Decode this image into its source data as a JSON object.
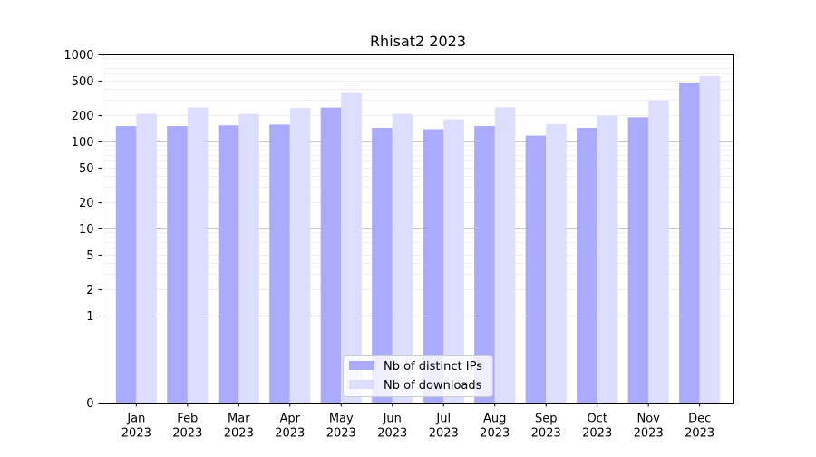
{
  "chart_data": {
    "type": "bar",
    "title": "Rhisat2 2023",
    "xlabel": "",
    "ylabel": "",
    "y_scale": "symlog",
    "ylim": [
      0,
      1000
    ],
    "y_ticks": [
      0,
      1,
      2,
      5,
      10,
      20,
      50,
      100,
      200,
      500,
      1000
    ],
    "categories": [
      [
        "Jan",
        "2023"
      ],
      [
        "Feb",
        "2023"
      ],
      [
        "Mar",
        "2023"
      ],
      [
        "Apr",
        "2023"
      ],
      [
        "May",
        "2023"
      ],
      [
        "Jun",
        "2023"
      ],
      [
        "Jul",
        "2023"
      ],
      [
        "Aug",
        "2023"
      ],
      [
        "Sep",
        "2023"
      ],
      [
        "Oct",
        "2023"
      ],
      [
        "Nov",
        "2023"
      ],
      [
        "Dec",
        "2023"
      ]
    ],
    "series": [
      {
        "name": "Nb of distinct IPs",
        "color": "#aaaaff",
        "values": [
          152,
          152,
          155,
          158,
          248,
          145,
          140,
          152,
          118,
          145,
          192,
          480
        ]
      },
      {
        "name": "Nb of downloads",
        "color": "#ddddff",
        "values": [
          210,
          248,
          210,
          245,
          365,
          210,
          182,
          250,
          160,
          200,
          300,
          570
        ]
      }
    ],
    "grid": true,
    "legend_position": "bottom-center"
  }
}
